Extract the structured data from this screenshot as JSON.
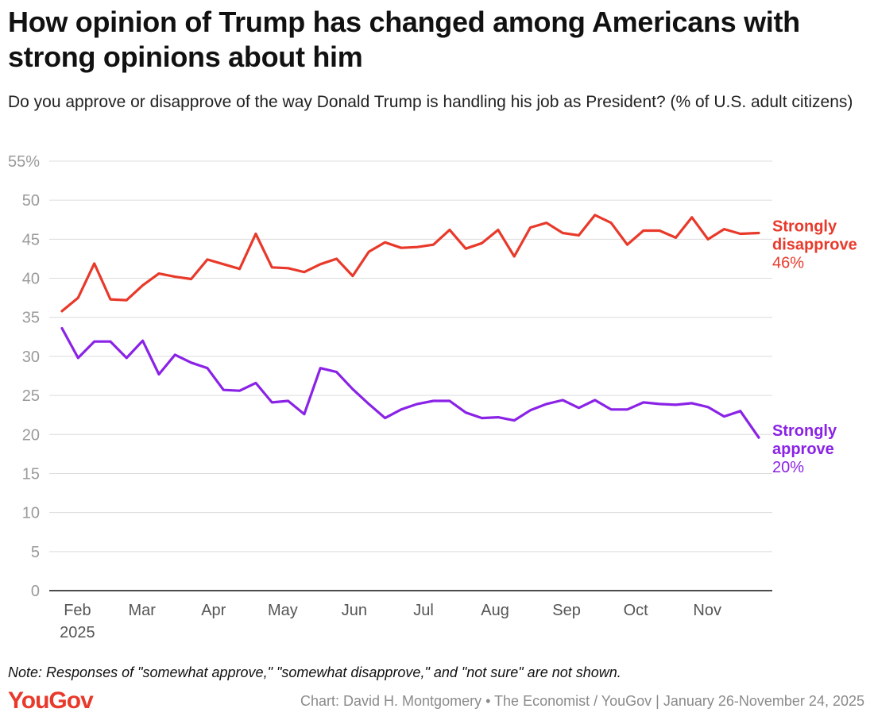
{
  "title": "How opinion of Trump has changed among Americans with strong opinions about him",
  "subtitle": "Do you approve or disapprove of the way Donald Trump is handling his job as President? (% of U.S. adult citizens)",
  "note": "Note: Responses of \"somewhat approve,\" \"somewhat disapprove,\" and \"not sure\" are not shown.",
  "logo": "YouGov",
  "source": "Chart: David H. Montgomery • The Economist / YouGov | January 26-November 24, 2025",
  "colors": {
    "disapprove": "#e8392a",
    "approve": "#8a23e6",
    "logo": "#e8392a"
  },
  "chart_data": {
    "type": "line",
    "ylim": [
      0,
      55
    ],
    "yticks": [
      0,
      5,
      10,
      15,
      20,
      25,
      30,
      35,
      40,
      45,
      50,
      55
    ],
    "ytick_labels": [
      "0",
      "5",
      "10",
      "15",
      "20",
      "25",
      "30",
      "35",
      "40",
      "45",
      "50",
      "55%"
    ],
    "grid": true,
    "x_start": "2025-01-26",
    "x_end": "2025-11-24",
    "xticks": [
      {
        "date": "2025-02-01",
        "label": "Feb",
        "sublabel": "2025"
      },
      {
        "date": "2025-03-01",
        "label": "Mar",
        "sublabel": ""
      },
      {
        "date": "2025-04-01",
        "label": "Apr",
        "sublabel": ""
      },
      {
        "date": "2025-05-01",
        "label": "May",
        "sublabel": ""
      },
      {
        "date": "2025-06-01",
        "label": "Jun",
        "sublabel": ""
      },
      {
        "date": "2025-07-01",
        "label": "Jul",
        "sublabel": ""
      },
      {
        "date": "2025-08-01",
        "label": "Aug",
        "sublabel": ""
      },
      {
        "date": "2025-09-01",
        "label": "Sep",
        "sublabel": ""
      },
      {
        "date": "2025-10-01",
        "label": "Oct",
        "sublabel": ""
      },
      {
        "date": "2025-11-01",
        "label": "Nov",
        "sublabel": ""
      }
    ],
    "x": [
      "2025-01-26",
      "2025-02-02",
      "2025-02-09",
      "2025-02-16",
      "2025-02-23",
      "2025-03-02",
      "2025-03-09",
      "2025-03-16",
      "2025-03-23",
      "2025-03-30",
      "2025-04-06",
      "2025-04-13",
      "2025-04-20",
      "2025-04-27",
      "2025-05-04",
      "2025-05-11",
      "2025-05-18",
      "2025-05-25",
      "2025-06-01",
      "2025-06-08",
      "2025-06-15",
      "2025-06-22",
      "2025-06-29",
      "2025-07-06",
      "2025-07-13",
      "2025-07-20",
      "2025-07-27",
      "2025-08-03",
      "2025-08-10",
      "2025-08-17",
      "2025-08-24",
      "2025-08-31",
      "2025-09-07",
      "2025-09-14",
      "2025-09-21",
      "2025-09-28",
      "2025-10-05",
      "2025-10-12",
      "2025-10-19",
      "2025-10-26",
      "2025-11-02",
      "2025-11-09",
      "2025-11-16",
      "2025-11-24"
    ],
    "series": [
      {
        "name": "Strongly disapprove",
        "end_label": "46%",
        "color_key": "disapprove",
        "values": [
          35.8,
          37.5,
          41.9,
          37.3,
          37.2,
          39.1,
          40.6,
          40.2,
          39.9,
          42.4,
          41.8,
          41.2,
          45.7,
          41.4,
          41.3,
          40.8,
          41.8,
          42.5,
          40.3,
          43.4,
          44.6,
          43.9,
          44.0,
          44.3,
          46.2,
          43.8,
          44.5,
          46.2,
          42.8,
          46.5,
          47.1,
          45.8,
          45.5,
          48.1,
          47.1,
          44.3,
          46.1,
          46.1,
          45.2,
          47.8,
          45.0,
          46.3,
          45.7,
          45.8
        ]
      },
      {
        "name": "Strongly approve",
        "end_label": "20%",
        "color_key": "approve",
        "values": [
          33.6,
          29.8,
          31.9,
          31.9,
          29.8,
          32.0,
          27.7,
          30.2,
          29.2,
          28.5,
          25.7,
          25.6,
          26.6,
          24.1,
          24.3,
          22.6,
          28.5,
          28.0,
          25.8,
          23.9,
          22.1,
          23.2,
          23.9,
          24.3,
          24.3,
          22.8,
          22.1,
          22.2,
          21.8,
          23.1,
          23.9,
          24.4,
          23.4,
          24.4,
          23.2,
          23.2,
          24.1,
          23.9,
          23.8,
          24.0,
          23.5,
          22.3,
          23.0,
          19.6
        ]
      }
    ]
  }
}
